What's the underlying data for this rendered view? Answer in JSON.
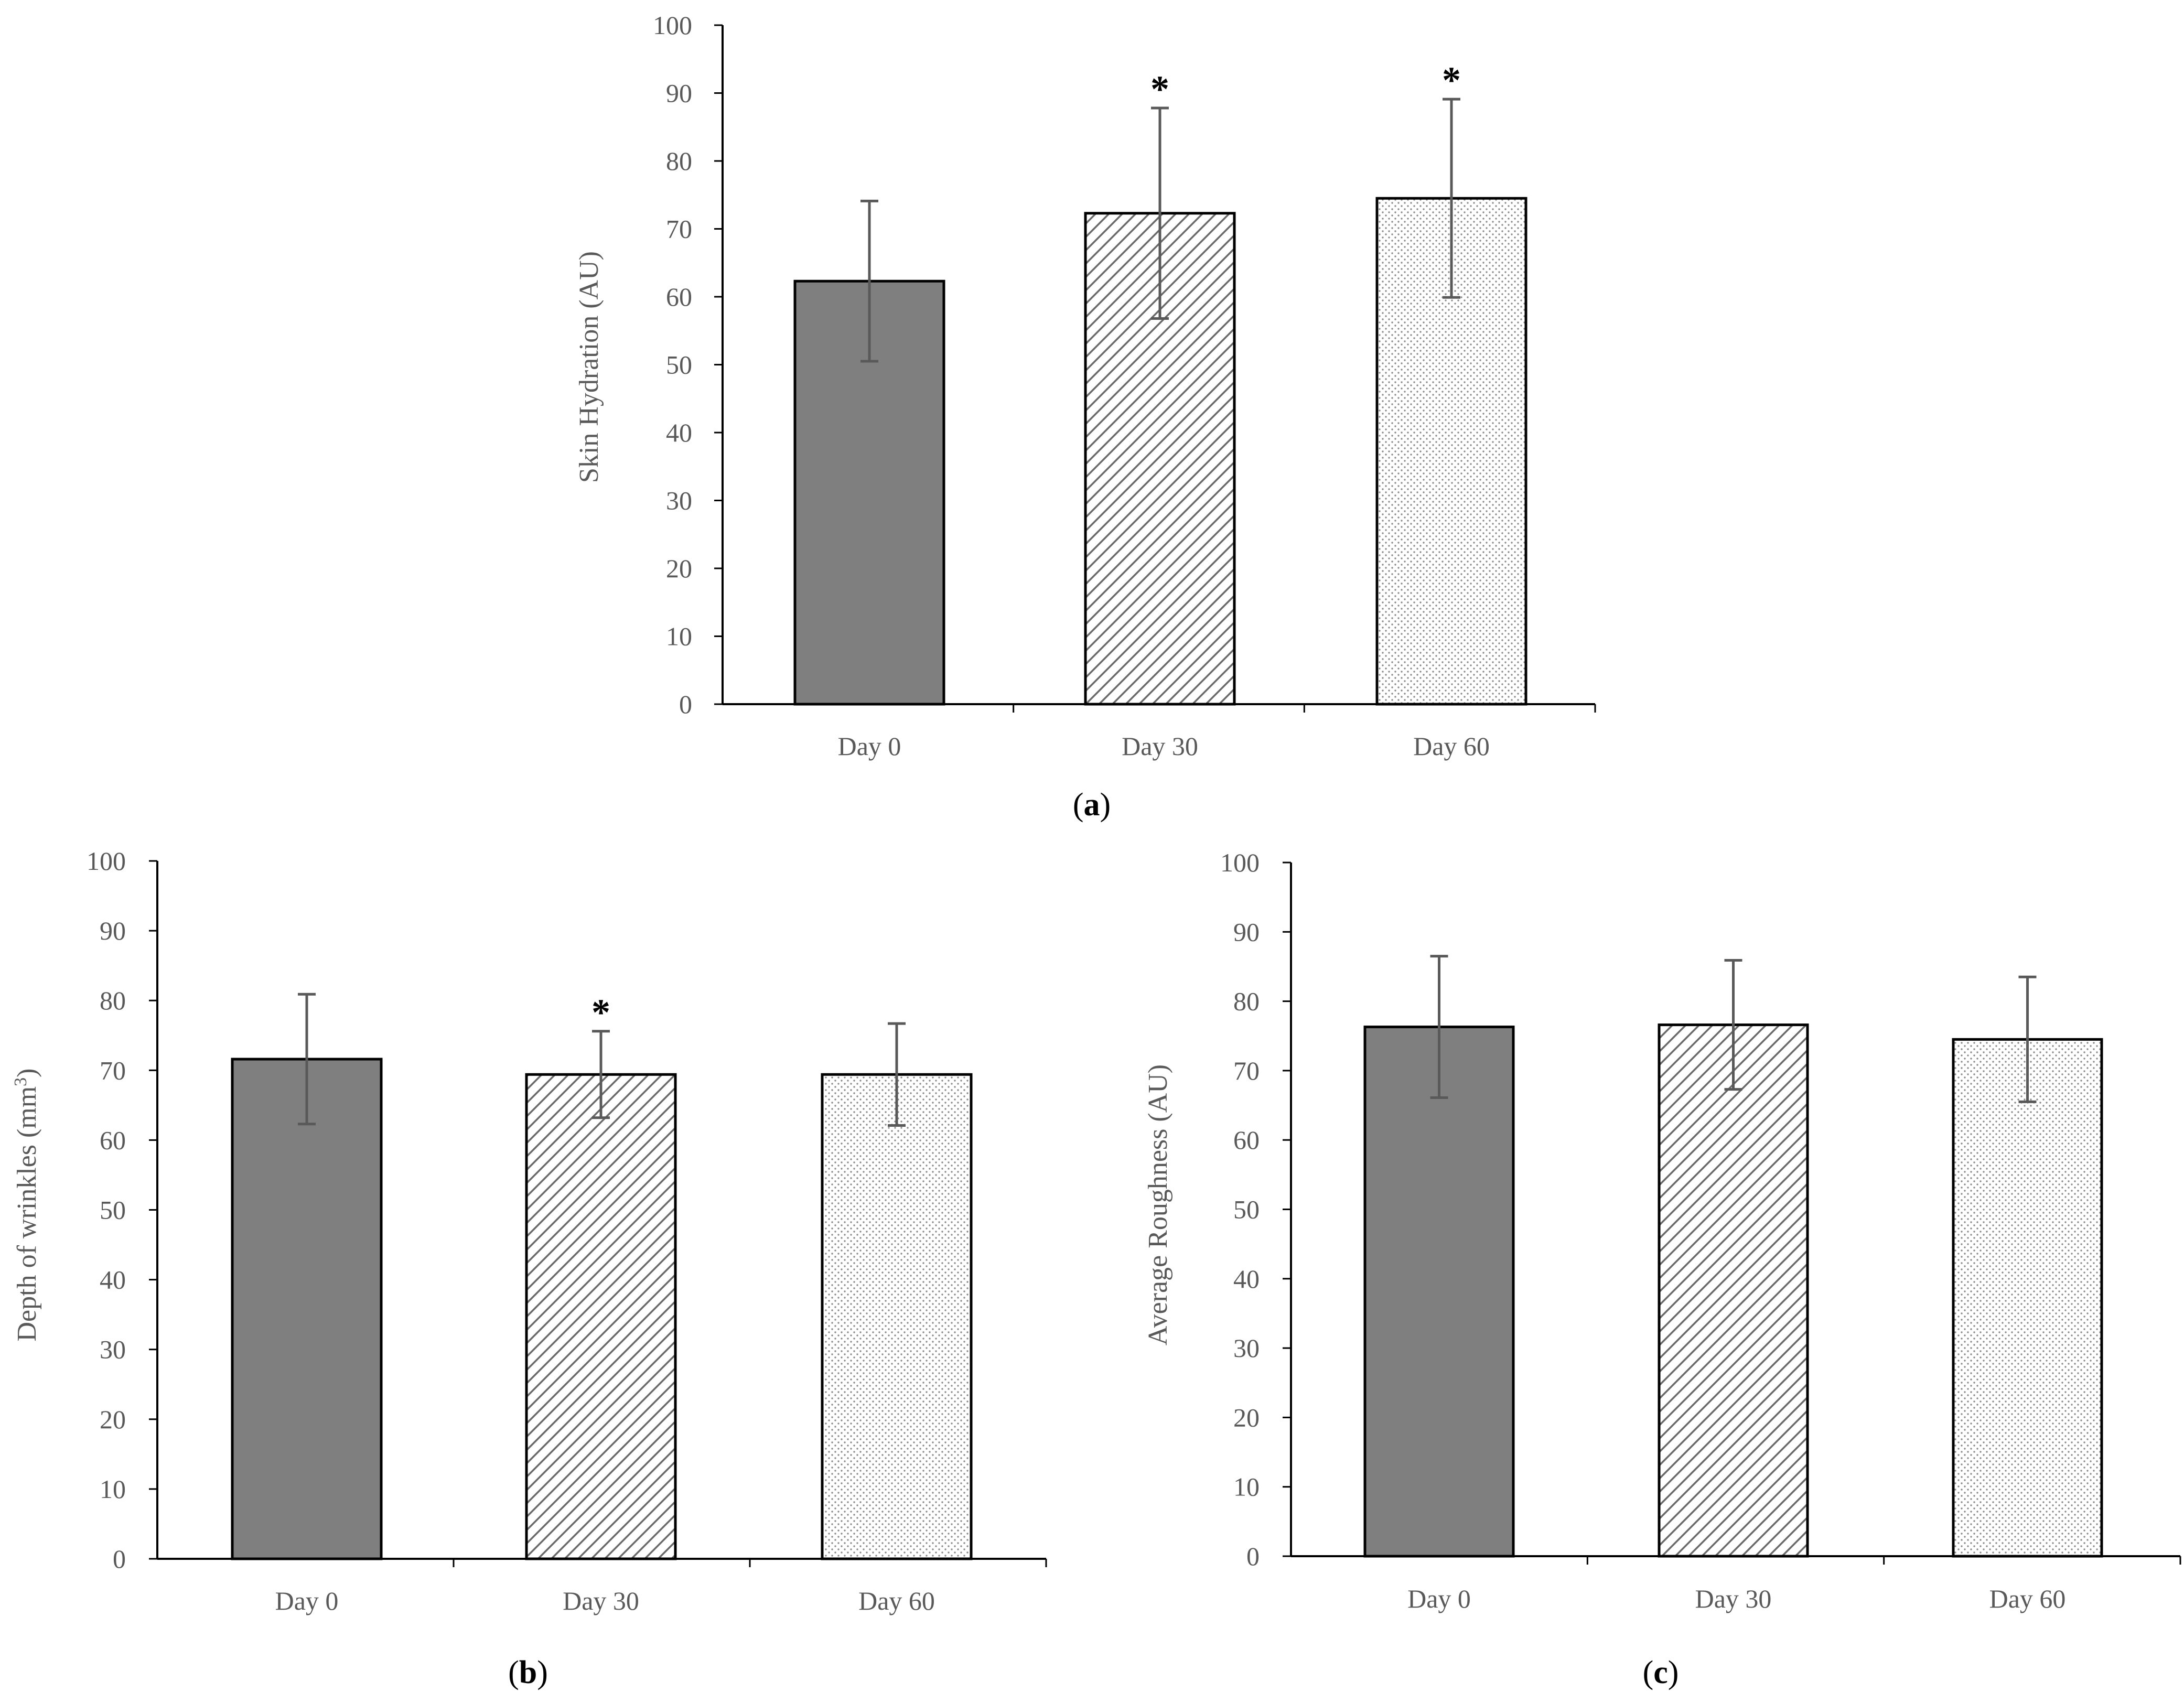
{
  "colors": {
    "axis": "#000000",
    "tick_text": "#595959",
    "bar_outline": "#000000",
    "error_bar": "#595959",
    "day0_fill": "#7f7f7f",
    "hatch_line": "#6a6a6a",
    "dot_fill": "#8c8c8c"
  },
  "chart_data": [
    {
      "id": "a",
      "type": "bar",
      "panel_label": "(a)",
      "panel_letter": "a",
      "categories": [
        "Day 0",
        "Day 30",
        "Day 60"
      ],
      "values": [
        62.3,
        72.3,
        74.5
      ],
      "errors": [
        11.8,
        15.5,
        14.6
      ],
      "significance": [
        "",
        "*",
        "*"
      ],
      "ylabel": "Skin Hydration (AU)",
      "ylabel_sup": "",
      "ylabel_tail": "",
      "xlabel": "",
      "ylim": [
        0,
        100
      ],
      "yticks": [
        0,
        10,
        20,
        30,
        40,
        50,
        60,
        70,
        80,
        90,
        100
      ],
      "grid": false,
      "fills": [
        "solid-gray",
        "diagonal-hatch",
        "dotted"
      ]
    },
    {
      "id": "b",
      "type": "bar",
      "panel_label": "(b)",
      "panel_letter": "b",
      "categories": [
        "Day 0",
        "Day 30",
        "Day 60"
      ],
      "values": [
        71.6,
        69.4,
        69.4
      ],
      "errors": [
        9.3,
        6.2,
        7.3
      ],
      "significance": [
        "",
        "*",
        ""
      ],
      "ylabel": "Depth of wrinkles (mm",
      "ylabel_sup": "3",
      "ylabel_tail": ")",
      "xlabel": "",
      "ylim": [
        0,
        100
      ],
      "yticks": [
        0,
        10,
        20,
        30,
        40,
        50,
        60,
        70,
        80,
        90,
        100
      ],
      "grid": false,
      "fills": [
        "solid-gray",
        "diagonal-hatch",
        "dotted"
      ]
    },
    {
      "id": "c",
      "type": "bar",
      "panel_label": "(c)",
      "panel_letter": "c",
      "categories": [
        "Day 0",
        "Day 30",
        "Day 60"
      ],
      "values": [
        76.3,
        76.6,
        74.5
      ],
      "errors": [
        10.2,
        9.3,
        9.0
      ],
      "significance": [
        "",
        "",
        ""
      ],
      "ylabel": "Average Roughness (AU)",
      "ylabel_sup": "",
      "ylabel_tail": "",
      "xlabel": "",
      "ylim": [
        0,
        100
      ],
      "yticks": [
        0,
        10,
        20,
        30,
        40,
        50,
        60,
        70,
        80,
        90,
        100
      ],
      "grid": false,
      "fills": [
        "solid-gray",
        "diagonal-hatch",
        "dotted"
      ]
    }
  ]
}
